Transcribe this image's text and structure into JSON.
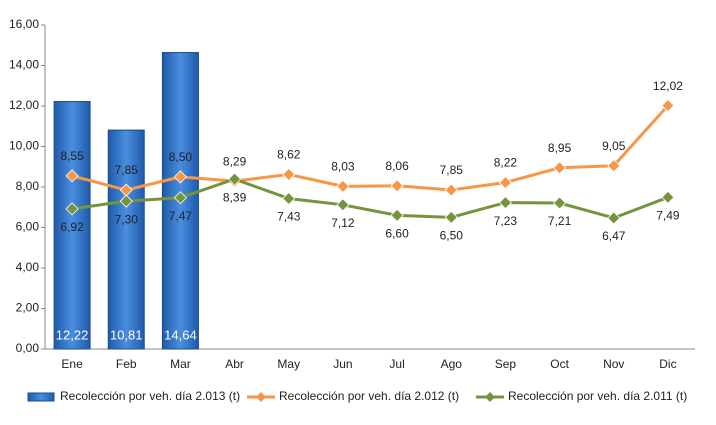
{
  "chart_data": {
    "type": "bar_line",
    "categories": [
      "Ene",
      "Feb",
      "Mar",
      "Abr",
      "May",
      "Jun",
      "Jul",
      "Ago",
      "Sep",
      "Oct",
      "Nov",
      "Dic"
    ],
    "series": [
      {
        "name": "Recolección por veh. día 2.013 (t)",
        "type": "bar",
        "color": "#2e6fc0",
        "values": [
          12.22,
          10.81,
          14.64,
          null,
          null,
          null,
          null,
          null,
          null,
          null,
          null,
          null
        ],
        "value_labels": [
          "12,22",
          "10,81",
          "14,64",
          null,
          null,
          null,
          null,
          null,
          null,
          null,
          null,
          null
        ]
      },
      {
        "name": "Recolección por veh. día 2.012 (t)",
        "type": "line",
        "color": "#f79646",
        "values": [
          8.55,
          7.85,
          8.5,
          8.29,
          8.62,
          8.03,
          8.06,
          7.85,
          8.22,
          8.95,
          9.05,
          12.02
        ],
        "value_labels": [
          "8,55",
          "7,85",
          "8,50",
          "8,29",
          "8,62",
          "8,03",
          "8,06",
          "7,85",
          "8,22",
          "8,95",
          "9,05",
          "12,02"
        ]
      },
      {
        "name": "Recolección por veh. día 2.011 (t)",
        "type": "line",
        "color": "#77933c",
        "values": [
          6.92,
          7.3,
          7.47,
          8.39,
          7.43,
          7.12,
          6.6,
          6.5,
          7.23,
          7.21,
          6.47,
          7.49
        ],
        "value_labels": [
          "6,92",
          "7,30",
          "7,47",
          "8,39",
          "7,43",
          "7,12",
          "6,60",
          "6,50",
          "7,23",
          "7,21",
          "6,47",
          "7,49"
        ]
      }
    ],
    "ylim": [
      0,
      16
    ],
    "yticks": [
      {
        "value": 0,
        "label": "0,00"
      },
      {
        "value": 2,
        "label": "2,00"
      },
      {
        "value": 4,
        "label": "4,00"
      },
      {
        "value": 6,
        "label": "6,00"
      },
      {
        "value": 8,
        "label": "8,00"
      },
      {
        "value": 10,
        "label": "10,00"
      },
      {
        "value": 12,
        "label": "12,00"
      },
      {
        "value": 14,
        "label": "14,00"
      },
      {
        "value": 16,
        "label": "16,00"
      }
    ],
    "legend": "bottom"
  }
}
